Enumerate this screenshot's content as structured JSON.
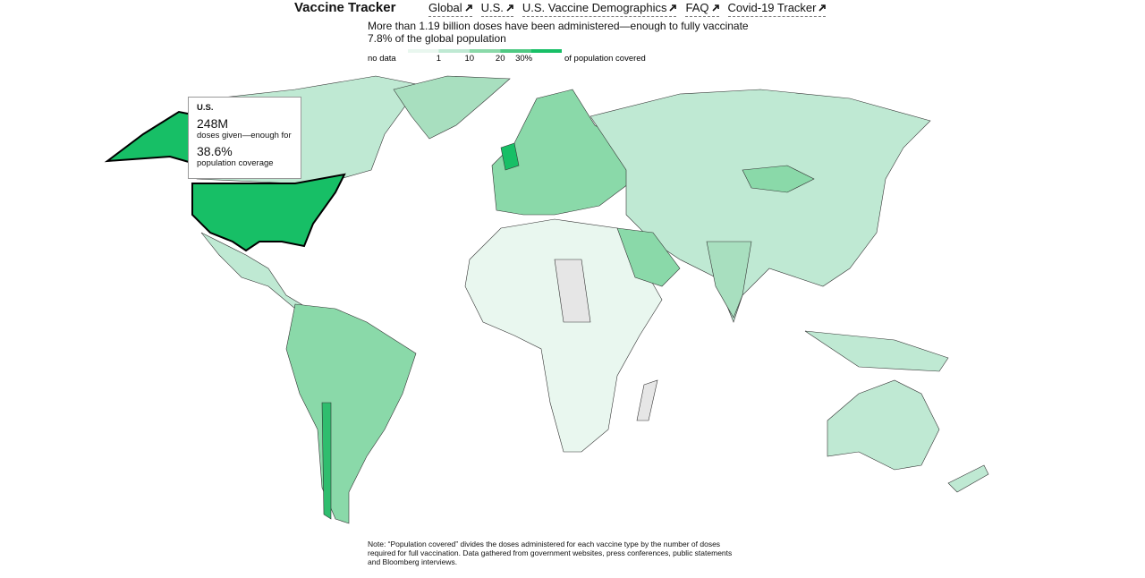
{
  "header": {
    "title": "Vaccine Tracker",
    "nav": [
      "Global",
      "U.S.",
      "U.S. Vaccine Demographics",
      "FAQ",
      "Covid-19 Tracker"
    ]
  },
  "summary": "More than 1.19 billion doses have been administered—enough to fully vaccinate 7.8% of the global population",
  "legend": {
    "no_data": "no data",
    "ticks": [
      "1",
      "10",
      "20",
      "30%"
    ],
    "caption": "of population covered",
    "colors": [
      "#e9f7ef",
      "#bfe9d3",
      "#8ad9a9",
      "#4fc983",
      "#17bf66"
    ]
  },
  "tooltip": {
    "country": "U.S.",
    "doses": "248M",
    "doses_text": "doses given—enough for",
    "coverage": "38.6%",
    "coverage_text": "population coverage"
  },
  "note": "Note: “Population covered” divides the doses administered for each vaccine type by the number of doses required for full vaccination. Data gathered from government websites, press conferences, public statements and Bloomberg interviews."
}
